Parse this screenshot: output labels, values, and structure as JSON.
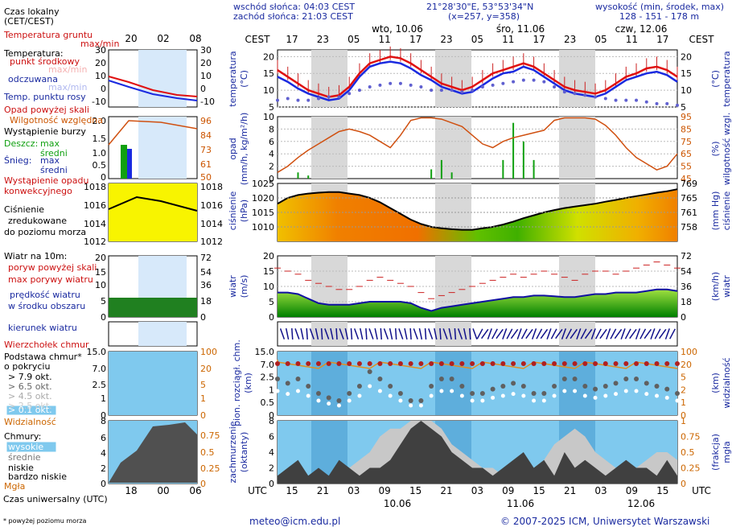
{
  "header": {
    "sunrise": "wschód słońca: 04:03 CEST",
    "sunset": "zachód słońca: 21:03 CEST",
    "coords": "21°28'30\"E, 53°53'34\"N",
    "grid": "(x=257, y=358)",
    "elev_title": "wysokość (min, środek, max)",
    "elev_values": "128 - 151 - 178 m"
  },
  "footer": {
    "email": "meteo@icm.edu.pl",
    "copyright": "© 2007-2025 ICM, Uniwersytet Warszawski",
    "note": "* powyżej poziomu morza",
    "utc_label": "Czas uniwersalny (UTC)"
  },
  "legend": {
    "local_time": "Czas lokalny",
    "local_time_sub": "(CET/CEST)",
    "ground_temp": "Temperatura gruntu",
    "ground_temp_sub": "max/min",
    "temperature": "Temperatura:",
    "midpoint": "punkt środkowy",
    "maxmin": "max/min",
    "perceived": "odczuwana",
    "maxmin2": "max/min",
    "dewpoint": "Temp. punktu rosy",
    "precip_above": "Opad powyżej skali",
    "humidity": "Wilgotność względna",
    "storm": "Wystąpienie burzy",
    "rain": "Deszcz:",
    "max": "max",
    "mean": "średni",
    "snow": "Śnieg:",
    "convective": "Wystąpienie opadu",
    "convective2": "konwekcyjnego",
    "pressure1": "Ciśnienie",
    "pressure2": "zredukowane",
    "pressure3": "do poziomu morza",
    "wind10": "Wiatr na 10m:",
    "gust_above": "poryw powyżej skali",
    "max_gust": "max porywy wiatru",
    "wind_speed": "prędkość wiatru",
    "wind_speed2": "w środku obszaru",
    "wind_dir": "kierunek wiatru",
    "cloud_top": "Wierzchołek chmur",
    "cloud_base": "Podstawa chmur*",
    "cloud_base2": "o pokryciu",
    "okt79": "> 7.9 okt.",
    "okt65": "> 6.5 okt.",
    "okt45": "> 4.5 okt.",
    "okt25": "> 2.5 okt.",
    "okt01": "> 0.1 okt.",
    "visibility": "Widzialność",
    "clouds": "Chmury:",
    "high": "wysokie",
    "middle": "średnie",
    "low": "niskie",
    "very_low": "bardzo niskie",
    "fog": "Mgła"
  },
  "axis_labels": {
    "temp_left": "temperatura",
    "temp_unit": "(°C)",
    "precip_left": "opad",
    "precip_unit": "(mm/h, kg/m²/h)",
    "hum_right": "wilgotność wzgl.",
    "hum_unit": "(%)",
    "press_left": "ciśnienie",
    "press_unit": "(hPa)",
    "press_right_unit": "(mm Hg)",
    "press_right": "ciśnienie",
    "wind_left": "wiatr",
    "wind_unit": "(m/s)",
    "wind_right_unit": "(km/h)",
    "wind_right": "wiatr",
    "cloud_left1": "pion. rozciągł. chm.",
    "cloud_left2": "(km)",
    "vis_right1": "widzialność",
    "vis_right2": "(km)",
    "cov_left1": "zachmurzenie",
    "cov_left2": "(oktanty)",
    "fog_right1": "mgła",
    "fog_right2": "(frakcja)",
    "cest": "CEST",
    "utc": "UTC"
  },
  "timeline": {
    "days_top": [
      "wto, 10.06",
      "śro, 11.06",
      "czw, 12.06"
    ],
    "days_bottom": [
      "10.06",
      "11.06",
      "12.06"
    ],
    "cest_ticks": [
      "17",
      "23",
      "05",
      "11",
      "17",
      "23",
      "05",
      "11",
      "17",
      "23",
      "05",
      "11",
      "17"
    ],
    "utc_ticks": [
      "15",
      "21",
      "03",
      "09",
      "15",
      "21",
      "03",
      "09",
      "15",
      "21",
      "03",
      "09",
      "15"
    ],
    "mini_local": [
      "20",
      "02",
      "08"
    ],
    "mini_utc": [
      "18",
      "00",
      "06"
    ]
  },
  "chart_data": [
    {
      "type": "line",
      "title": "temperatura (°C)",
      "ylim": [
        5,
        22
      ],
      "yticks": [
        "5",
        "10",
        "15",
        "20"
      ],
      "series": [
        {
          "name": "punkt środkowy",
          "values": [
            16,
            14,
            12,
            10,
            9,
            8,
            8.5,
            11,
            15,
            18,
            19,
            20,
            19.5,
            18,
            16,
            14,
            12,
            11,
            10,
            11,
            13,
            15,
            16,
            17,
            18,
            17,
            15,
            13,
            11,
            10,
            9.5,
            9,
            10,
            12,
            14,
            15,
            16.5,
            17,
            16,
            14
          ]
        },
        {
          "name": "odczuwana",
          "values": [
            14,
            12.5,
            10.5,
            9,
            8,
            7,
            7.5,
            10,
            14,
            17,
            18,
            18.5,
            18,
            16.5,
            14.5,
            13,
            11,
            10,
            9,
            9.5,
            11.5,
            13.5,
            15,
            15.5,
            17,
            16,
            14,
            12,
            10,
            9,
            8.5,
            8,
            9,
            11,
            13,
            14,
            15,
            15.5,
            14.5,
            12.5
          ]
        },
        {
          "name": "Temp. punktu rosy",
          "values": [
            7,
            7.5,
            7,
            7,
            7.5,
            8,
            8,
            9,
            10,
            11,
            11.5,
            12,
            12,
            11.5,
            11,
            10,
            10,
            10,
            9.5,
            10,
            11,
            11.5,
            12,
            12.5,
            13,
            13,
            12.5,
            11,
            9.5,
            9,
            8.5,
            8,
            7.5,
            7,
            7,
            7,
            6.5,
            6,
            6,
            5.5
          ]
        }
      ]
    },
    {
      "type": "bar",
      "title": "opad (mm/h, kg/m²/h)",
      "ylim": [
        0,
        10
      ],
      "yticks": [
        "0",
        "2",
        "4",
        "6",
        "8",
        "10"
      ],
      "right_axis": {
        "label": "wilgotność wzgl. (%)",
        "ylim": [
          45,
          95
        ],
        "yticks": [
          "45",
          "55",
          "65",
          "75",
          "85",
          "95"
        ]
      },
      "series": [
        {
          "name": "Wilgotność względna",
          "values": [
            50,
            55,
            62,
            68,
            73,
            78,
            83,
            85,
            83,
            80,
            75,
            70,
            80,
            92,
            94,
            94,
            93,
            90,
            87,
            80,
            73,
            70,
            75,
            78,
            80,
            82,
            84,
            92,
            94,
            94,
            94,
            93,
            88,
            80,
            70,
            62,
            57,
            52,
            55,
            65
          ]
        },
        {
          "name": "Deszcz max",
          "values": [
            0,
            0,
            1,
            0.5,
            0,
            0,
            0,
            0,
            0,
            0,
            0,
            0,
            0,
            0,
            0,
            1.5,
            3,
            1,
            0,
            0,
            0,
            0,
            3,
            9,
            6,
            3,
            0,
            0,
            0,
            0,
            0,
            0,
            0,
            0,
            0,
            0,
            0,
            0,
            0,
            0
          ]
        }
      ]
    },
    {
      "type": "area",
      "title": "ciśnienie (hPa)",
      "ylim": [
        1005,
        1025
      ],
      "yticks": [
        "1010",
        "1015",
        "1020",
        "1025"
      ],
      "right_axis": {
        "label": "ciśnienie (mm Hg)",
        "yticks": [
          "758",
          "761",
          "765",
          "769"
        ]
      },
      "values": [
        1018,
        1020,
        1021,
        1021.5,
        1021.8,
        1022,
        1022,
        1021.5,
        1021,
        1020,
        1018.5,
        1016.5,
        1014.5,
        1012.5,
        1011,
        1010,
        1009.5,
        1009.2,
        1009,
        1009,
        1009.5,
        1010,
        1010.8,
        1011.8,
        1013,
        1014,
        1015,
        1015.8,
        1016.5,
        1017,
        1017.5,
        1018,
        1018.7,
        1019.3,
        1020,
        1020.6,
        1021.2,
        1021.8,
        1022.3,
        1023
      ]
    },
    {
      "type": "line",
      "title": "wiatr (m/s)",
      "ylim": [
        0,
        20
      ],
      "yticks": [
        "0",
        "5",
        "10",
        "15",
        "20"
      ],
      "right_axis": {
        "label": "wiatr (km/h)",
        "yticks": [
          "0",
          "18",
          "36",
          "54",
          "72"
        ]
      },
      "series": [
        {
          "name": "prędkość wiatru",
          "values": [
            8,
            8,
            7.5,
            6,
            4.5,
            4,
            4,
            4,
            4.5,
            5,
            5,
            5,
            5,
            4.5,
            3,
            2,
            3,
            3.5,
            4,
            4.5,
            5,
            5.5,
            6,
            6.5,
            6.5,
            7,
            7,
            6.8,
            6.5,
            6.5,
            7,
            7.5,
            7.5,
            8,
            8,
            8,
            8.5,
            9,
            9,
            8.5
          ]
        },
        {
          "name": "max porywy wiatru",
          "values": [
            16,
            15,
            14,
            12,
            11,
            10,
            9,
            9,
            10,
            12,
            13,
            12,
            11,
            10,
            8,
            6,
            7,
            8,
            9,
            10,
            11,
            12,
            13,
            14,
            13,
            14,
            15,
            14,
            13,
            12,
            14,
            15,
            15,
            14,
            15,
            16,
            17,
            18,
            17,
            16
          ]
        }
      ]
    },
    {
      "type": "scatter",
      "title": "pion. rozciągł. chm. (km)",
      "yticks": [
        "0",
        "0.5",
        "1",
        "2.5",
        "7.0",
        "15.0"
      ],
      "right_axis": {
        "label": "widzialność (km)",
        "yticks": [
          "0",
          "1",
          "2",
          "5",
          "20",
          "100"
        ]
      },
      "values": [
        2.5,
        2.2,
        2.5,
        2.0,
        1.5,
        1.2,
        1.0,
        1.5,
        2.0,
        3.0,
        2.5,
        2.0,
        1.5,
        1.0,
        1.0,
        2.0,
        2.5,
        2.5,
        2.0,
        1.5,
        1.5,
        1.8,
        2.0,
        2.2,
        2.0,
        1.5,
        1.5,
        2.0,
        2.5,
        2.5,
        2.0,
        1.8,
        2.0,
        2.2,
        2.5,
        2.5,
        2.2,
        2.0,
        1.8,
        1.5
      ]
    },
    {
      "type": "area",
      "title": "zachmurzenie (oktanty)",
      "ylim": [
        0,
        8
      ],
      "yticks": [
        "0",
        "2",
        "4",
        "6",
        "8"
      ],
      "right_axis": {
        "label": "mgła (frakcja)",
        "yticks": [
          "0",
          "0.25",
          "0.5",
          "0.75",
          "1"
        ]
      },
      "series": [
        {
          "name": "niskie",
          "values": [
            1,
            2,
            3,
            1,
            2,
            1,
            3,
            2,
            1,
            2,
            2,
            3,
            5,
            7,
            8,
            7,
            6,
            4,
            3,
            2,
            2,
            1,
            2,
            3,
            4,
            2,
            3,
            1,
            4,
            2,
            3,
            2,
            1,
            2,
            3,
            2,
            2,
            1,
            3,
            1
          ]
        },
        {
          "name": "średnie",
          "values": [
            0,
            0,
            1,
            0,
            0,
            1,
            1,
            2,
            3,
            4,
            6,
            7,
            7,
            8,
            8,
            8,
            7,
            5,
            4,
            3,
            2,
            2,
            1,
            1,
            2,
            2,
            3,
            5,
            6,
            7,
            6,
            4,
            3,
            2,
            1,
            2,
            3,
            4,
            4,
            3
          ]
        }
      ]
    }
  ]
}
